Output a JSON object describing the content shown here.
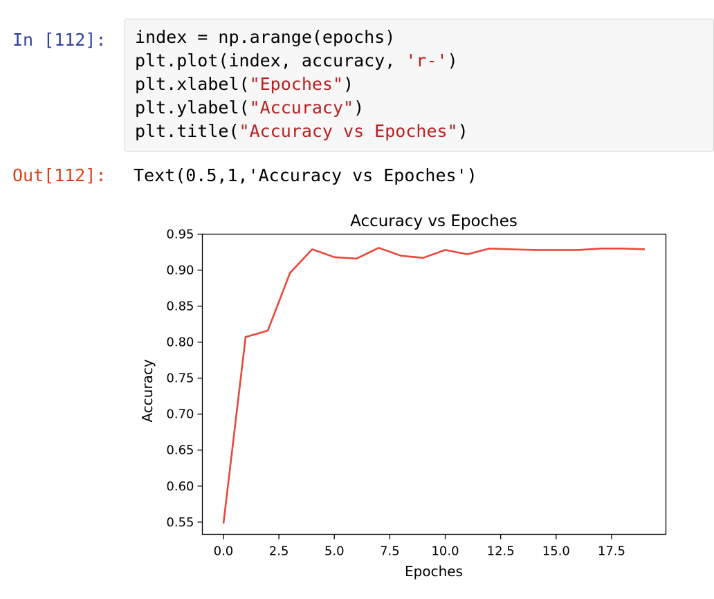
{
  "cell": {
    "in_prompt": "In [112]:",
    "out_prompt": "Out[112]:",
    "code_lines": [
      [
        {
          "t": "index = np.arange(epochs)",
          "c": "n"
        }
      ],
      [
        {
          "t": "plt.plot(index, accuracy, ",
          "c": "n"
        },
        {
          "t": "'r-'",
          "c": "s"
        },
        {
          "t": ")",
          "c": "n"
        }
      ],
      [
        {
          "t": "plt.xlabel(",
          "c": "n"
        },
        {
          "t": "\"Epoches\"",
          "c": "s"
        },
        {
          "t": ")",
          "c": "n"
        }
      ],
      [
        {
          "t": "plt.ylabel(",
          "c": "n"
        },
        {
          "t": "\"Accuracy\"",
          "c": "s"
        },
        {
          "t": ")",
          "c": "n"
        }
      ],
      [
        {
          "t": "plt.title(",
          "c": "n"
        },
        {
          "t": "\"Accuracy vs Epoches\"",
          "c": "s"
        },
        {
          "t": ")",
          "c": "n"
        }
      ]
    ],
    "output_text": "Text(0.5,1,'Accuracy vs Epoches')"
  },
  "colors": {
    "in_prompt": "#303f9f",
    "out_prompt": "#d84315",
    "string": "#ba2121",
    "line": "#e8483b"
  },
  "chart_data": {
    "type": "line",
    "title": "Accuracy vs Epoches",
    "xlabel": "Epoches",
    "ylabel": "Accuracy",
    "xlim": [
      -0.95,
      19.95
    ],
    "ylim": [
      0.533,
      0.95
    ],
    "xticks": [
      0.0,
      2.5,
      5.0,
      7.5,
      10.0,
      12.5,
      15.0,
      17.5
    ],
    "xtick_labels": [
      "0.0",
      "2.5",
      "5.0",
      "7.5",
      "10.0",
      "12.5",
      "15.0",
      "17.5"
    ],
    "yticks": [
      0.55,
      0.6,
      0.65,
      0.7,
      0.75,
      0.8,
      0.85,
      0.9,
      0.95
    ],
    "ytick_labels": [
      "0.55",
      "0.60",
      "0.65",
      "0.70",
      "0.75",
      "0.80",
      "0.85",
      "0.90",
      "0.95"
    ],
    "grid": false,
    "series": [
      {
        "x": [
          0,
          1,
          2,
          3,
          4,
          5,
          6,
          7,
          8,
          9,
          10,
          11,
          12,
          13,
          14,
          15,
          16,
          17,
          18,
          19
        ],
        "values": [
          0.548,
          0.807,
          0.816,
          0.896,
          0.929,
          0.918,
          0.916,
          0.931,
          0.92,
          0.917,
          0.928,
          0.922,
          0.93,
          0.929,
          0.928,
          0.928,
          0.928,
          0.93,
          0.93,
          0.929
        ],
        "color": "#e8483b",
        "style": "r-"
      }
    ]
  }
}
